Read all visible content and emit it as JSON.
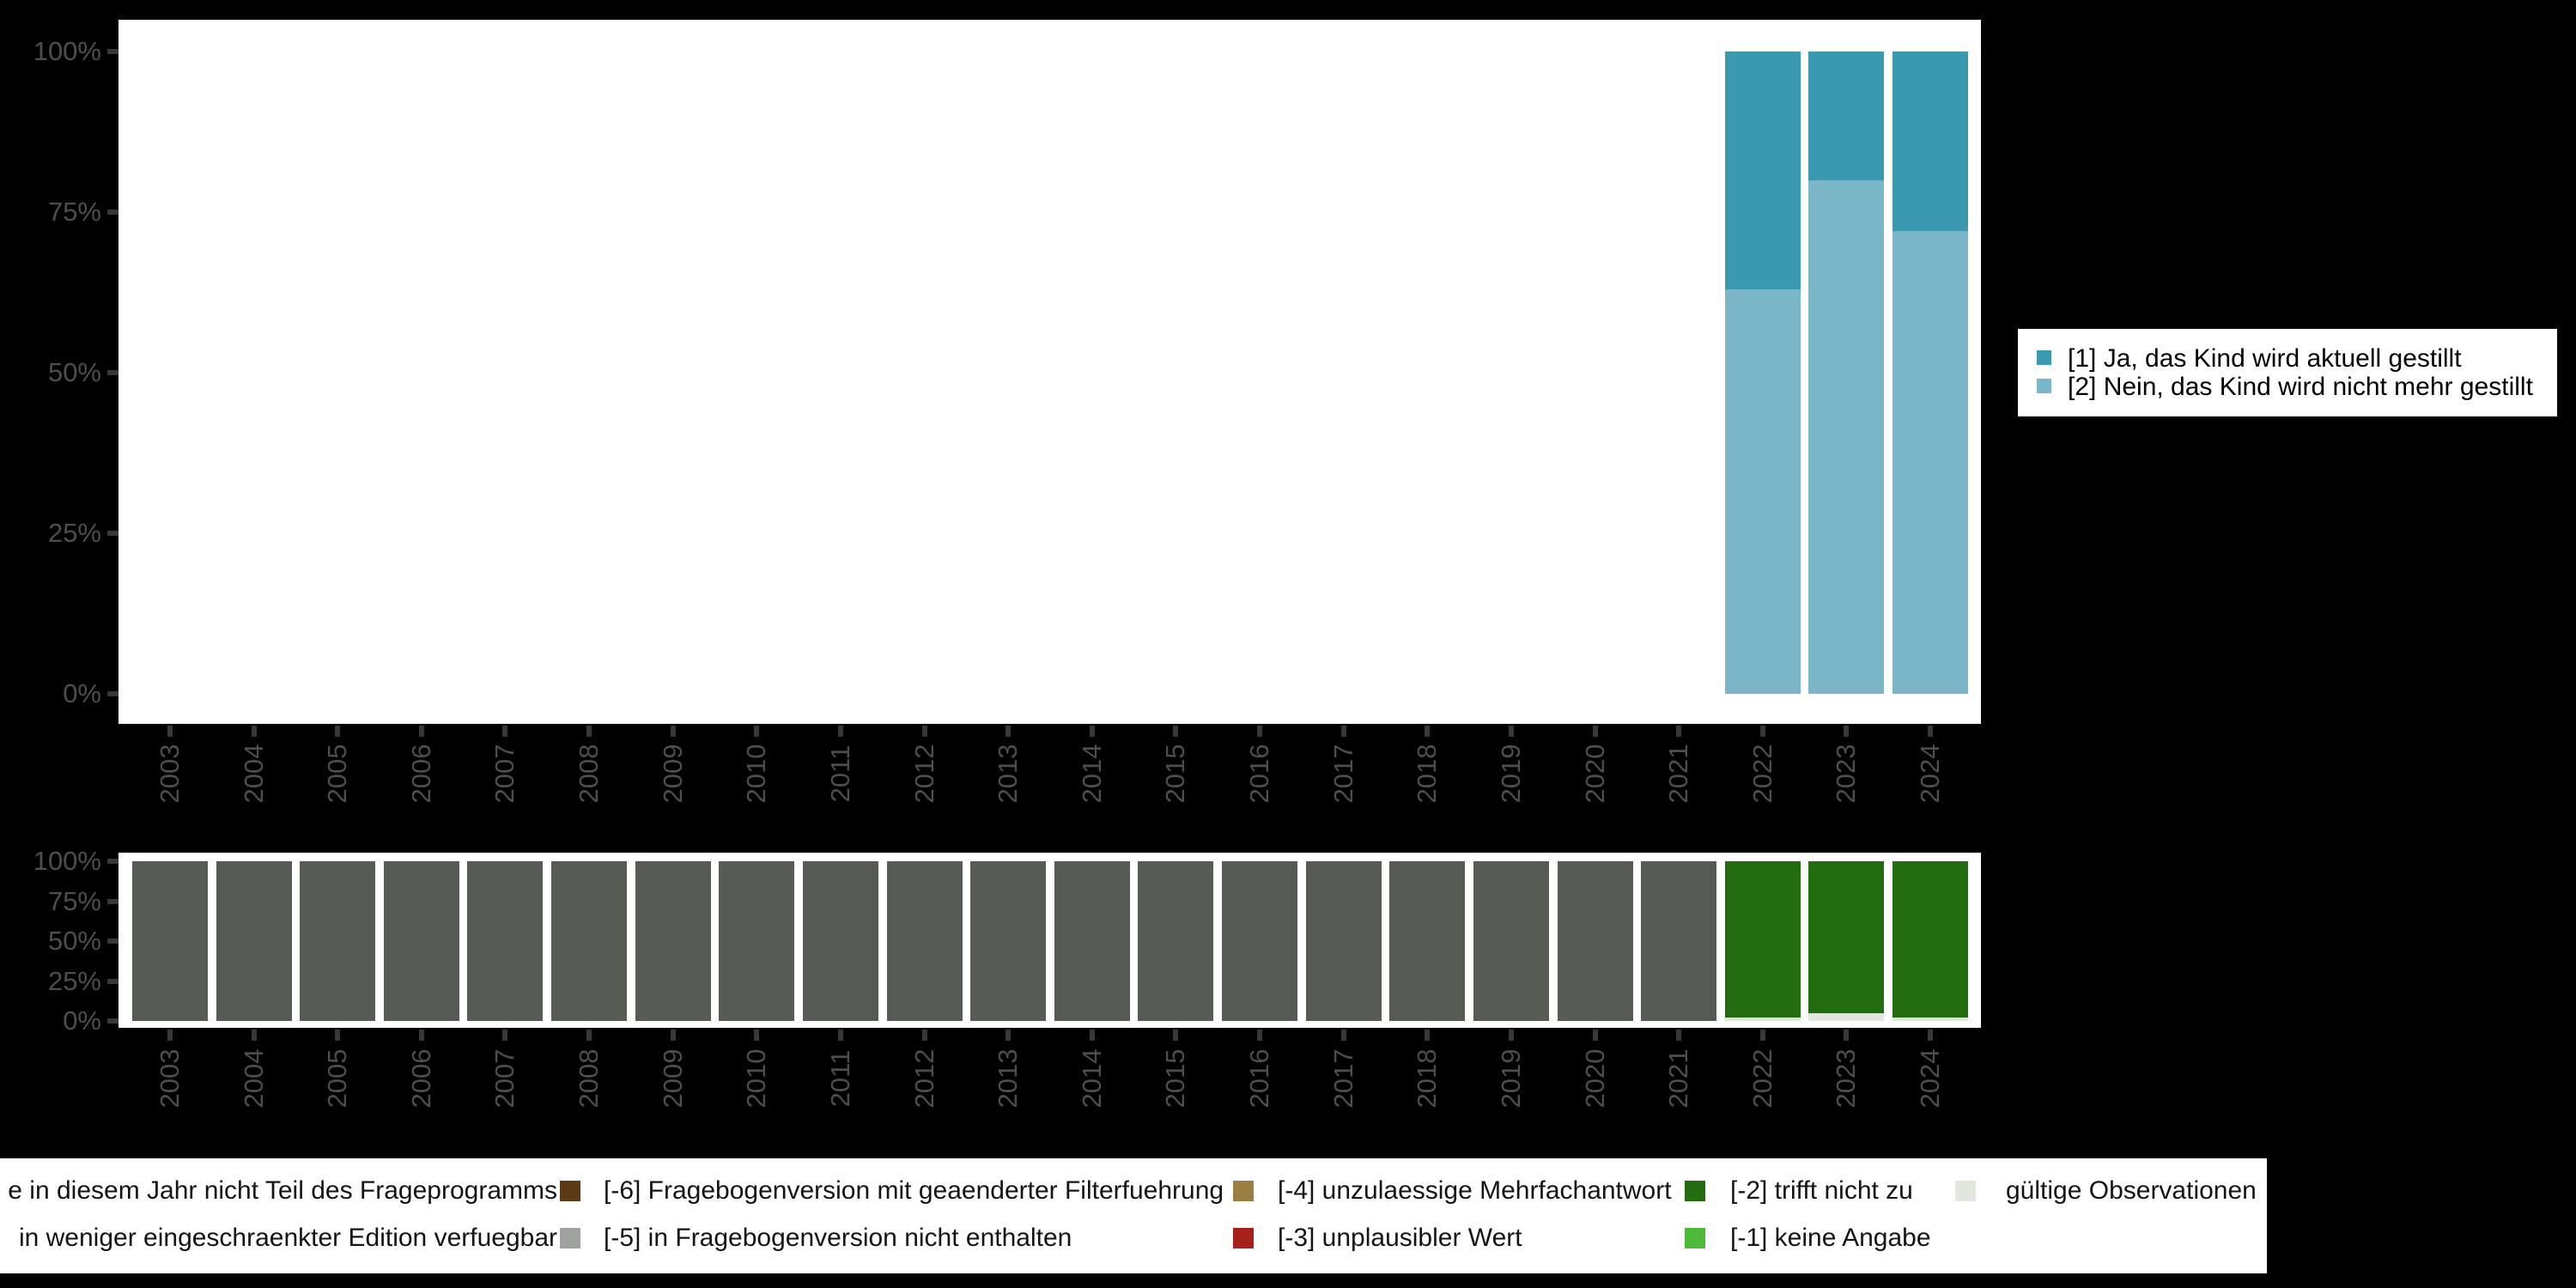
{
  "axes": {
    "years": [
      "2003",
      "2004",
      "2005",
      "2006",
      "2007",
      "2008",
      "2009",
      "2010",
      "2011",
      "2012",
      "2013",
      "2014",
      "2015",
      "2016",
      "2017",
      "2018",
      "2019",
      "2020",
      "2021",
      "2022",
      "2023",
      "2024"
    ],
    "y_tick_labels_top_down": [
      "100%",
      "75%",
      "50%",
      "25%",
      "0%"
    ]
  },
  "colors": {
    "ja": "#3A99AF",
    "nein": "#7AB6C8",
    "nicht_teil_des_frageprogramms": "#565B54",
    "trifft_nicht_zu": "#246C10",
    "gueltige_observationen": "#E2E7DE",
    "fragebogenversion_geaenderte_filterfuehrung": "#5C3A16",
    "unzulaessige_mehrfachantwort": "#9A7E43",
    "in_fragebogenversion_nicht_enthalten": "#9EA29D",
    "unplausibler_wert": "#A6211A",
    "keine_angabe": "#4EB93B",
    "axis_text": "#4e4e4e",
    "tick_mark": "#383838",
    "background": "#000000",
    "panel": "#ffffff"
  },
  "chart_data": [
    {
      "type": "bar",
      "stacked": true,
      "title": "",
      "xlabel": "",
      "ylabel": "",
      "ylim": [
        0,
        100
      ],
      "y_ticks": [
        "0%",
        "25%",
        "50%",
        "75%",
        "100%"
      ],
      "grid": false,
      "legend_position": "right",
      "categories": [
        "2003",
        "2004",
        "2005",
        "2006",
        "2007",
        "2008",
        "2009",
        "2010",
        "2011",
        "2012",
        "2013",
        "2014",
        "2015",
        "2016",
        "2017",
        "2018",
        "2019",
        "2020",
        "2021",
        "2022",
        "2023",
        "2024"
      ],
      "series": [
        {
          "name": "[1] Ja, das Kind wird aktuell gestillt",
          "color": "#3A99AF",
          "values": {
            "2022": 37,
            "2023": 20,
            "2024": 28
          }
        },
        {
          "name": "[2] Nein, das Kind wird nicht mehr gestillt",
          "color": "#7AB6C8",
          "values": {
            "2022": 63,
            "2023": 80,
            "2024": 72
          }
        }
      ]
    },
    {
      "type": "bar",
      "stacked": true,
      "title": "",
      "xlabel": "",
      "ylabel": "",
      "ylim": [
        0,
        100
      ],
      "y_ticks": [
        "0%",
        "25%",
        "50%",
        "75%",
        "100%"
      ],
      "grid": false,
      "legend_position": "bottom",
      "categories": [
        "2003",
        "2004",
        "2005",
        "2006",
        "2007",
        "2008",
        "2009",
        "2010",
        "2011",
        "2012",
        "2013",
        "2014",
        "2015",
        "2016",
        "2017",
        "2018",
        "2019",
        "2020",
        "2021",
        "2022",
        "2023",
        "2024"
      ],
      "series": [
        {
          "name": "Frage in diesem Jahr nicht Teil des Frageprogramms",
          "color": "#565B54",
          "values": {
            "2003": 100,
            "2004": 100,
            "2005": 100,
            "2006": 100,
            "2007": 100,
            "2008": 100,
            "2009": 100,
            "2010": 100,
            "2011": 100,
            "2012": 100,
            "2013": 100,
            "2014": 100,
            "2015": 100,
            "2016": 100,
            "2017": 100,
            "2018": 100,
            "2019": 100,
            "2020": 100,
            "2021": 100
          }
        },
        {
          "name": "[-2] trifft nicht zu",
          "color": "#246C10",
          "values": {
            "2022": 98,
            "2023": 95,
            "2024": 98
          }
        },
        {
          "name": "gültige Observationen",
          "color": "#E2E7DE",
          "values": {
            "2022": 2,
            "2023": 5,
            "2024": 2
          }
        }
      ]
    }
  ],
  "legend": {
    "items": [
      {
        "label": "[1] Ja, das Kind wird aktuell gestillt",
        "color": "#3A99AF"
      },
      {
        "label": "[2] Nein, das Kind wird nicht mehr gestillt",
        "color": "#7AB6C8"
      }
    ]
  },
  "bottom_legend": {
    "rows": [
      {
        "items": [
          {
            "label": "e in diesem Jahr nicht Teil des Frageprogramms",
            "swatch": null
          },
          {
            "label": "[-6] Fragebogenversion mit geaenderter Filterfuehrung",
            "swatch": "#5C3A16"
          },
          {
            "label": "[-4] unzulaessige Mehrfachantwort",
            "swatch": "#9A7E43"
          },
          {
            "label": "[-2] trifft nicht zu",
            "swatch": "#246C10"
          },
          {
            "label": "gültige Observationen",
            "swatch": "#E2E7DE"
          }
        ]
      },
      {
        "items": [
          {
            "label": "in weniger eingeschraenkter Edition verfuegbar",
            "swatch": null
          },
          {
            "label": "[-5] in Fragebogenversion nicht enthalten",
            "swatch": "#9EA29D"
          },
          {
            "label": "[-3] unplausibler Wert",
            "swatch": "#A6211A"
          },
          {
            "label": "[-1] keine Angabe",
            "swatch": "#4EB93B"
          }
        ]
      }
    ]
  }
}
